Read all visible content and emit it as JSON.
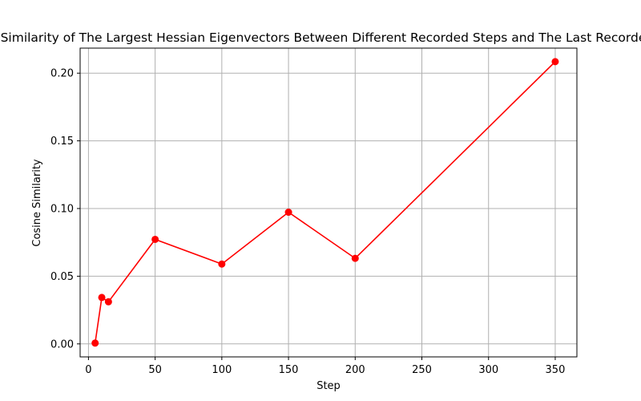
{
  "chart_data": {
    "type": "line",
    "title": "Cosine Similarity of The Largest Hessian Eigenvectors Between Different Recorded Steps and The Last Recorded Step",
    "xlabel": "Step",
    "ylabel": "Cosine Similarity",
    "xlim": [
      -6.25,
      366.25
    ],
    "ylim": [
      -0.0096,
      0.2185
    ],
    "x_ticks": [
      0,
      50,
      100,
      150,
      200,
      250,
      300,
      350
    ],
    "x_tick_labels": [
      "0",
      "50",
      "100",
      "150",
      "200",
      "250",
      "300",
      "350"
    ],
    "y_ticks": [
      0.0,
      0.05,
      0.1,
      0.15,
      0.2
    ],
    "y_tick_labels": [
      "0.00",
      "0.05",
      "0.10",
      "0.15",
      "0.20"
    ],
    "grid": true,
    "series": [
      {
        "color": "#ff0000",
        "marker": "circle",
        "x": [
          5,
          10,
          15,
          50,
          100,
          150,
          200,
          350
        ],
        "y": [
          0.0006,
          0.0343,
          0.0311,
          0.0772,
          0.059,
          0.0973,
          0.0632,
          0.2085
        ]
      }
    ]
  }
}
